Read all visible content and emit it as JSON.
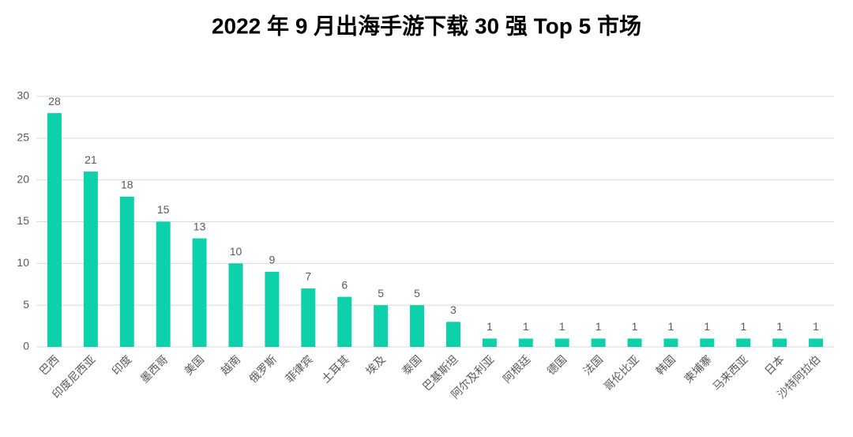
{
  "chart_data": {
    "type": "bar",
    "title": "2022 年 9 月出海手游下载 30 强 Top 5 市场",
    "categories": [
      "巴西",
      "印度尼西亚",
      "印度",
      "墨西哥",
      "美国",
      "越南",
      "俄罗斯",
      "菲律宾",
      "土耳其",
      "埃及",
      "泰国",
      "巴基斯坦",
      "阿尔及利亚",
      "阿根廷",
      "德国",
      "法国",
      "哥伦比亚",
      "韩国",
      "柬埔寨",
      "马来西亚",
      "日本",
      "沙特阿拉伯"
    ],
    "values": [
      28,
      21,
      18,
      15,
      13,
      10,
      9,
      7,
      6,
      5,
      5,
      3,
      1,
      1,
      1,
      1,
      1,
      1,
      1,
      1,
      1,
      1
    ],
    "color": "#0dd1aa",
    "ylim": [
      0,
      30
    ],
    "yticks": [
      0,
      5,
      10,
      15,
      20,
      25,
      30
    ],
    "grid": true
  }
}
